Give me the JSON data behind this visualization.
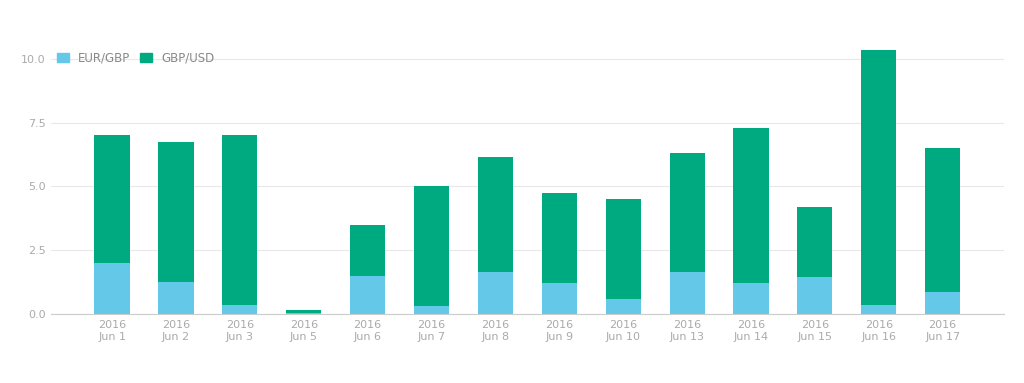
{
  "categories": [
    "2016\nJun 1",
    "2016\nJun 2",
    "2016\nJun 3",
    "2016\nJun 5",
    "2016\nJun 6",
    "2016\nJun 7",
    "2016\nJun 8",
    "2016\nJun 9",
    "2016\nJun 10",
    "2016\nJun 13",
    "2016\nJun 14",
    "2016\nJun 15",
    "2016\nJun 16",
    "2016\nJun 17"
  ],
  "eur_gbp": [
    2.0,
    1.25,
    0.35,
    0.05,
    1.5,
    0.3,
    1.65,
    1.2,
    0.6,
    1.65,
    1.2,
    1.45,
    0.35,
    0.85
  ],
  "gbp_usd": [
    5.0,
    5.5,
    6.65,
    0.1,
    2.0,
    4.7,
    4.5,
    3.55,
    3.9,
    4.65,
    6.1,
    2.75,
    10.0,
    5.65
  ],
  "eur_gbp_color": "#64c8e8",
  "gbp_usd_color": "#00aa80",
  "background_color": "#ffffff",
  "ylim": [
    0,
    10.5
  ],
  "yticks": [
    0.0,
    2.5,
    5.0,
    7.5,
    10.0
  ],
  "bar_width": 0.55,
  "legend_labels": [
    "EUR/GBP",
    "GBP/USD"
  ],
  "grid_color": "#e8e8e8",
  "label_fontsize": 8,
  "legend_fontsize": 8.5
}
